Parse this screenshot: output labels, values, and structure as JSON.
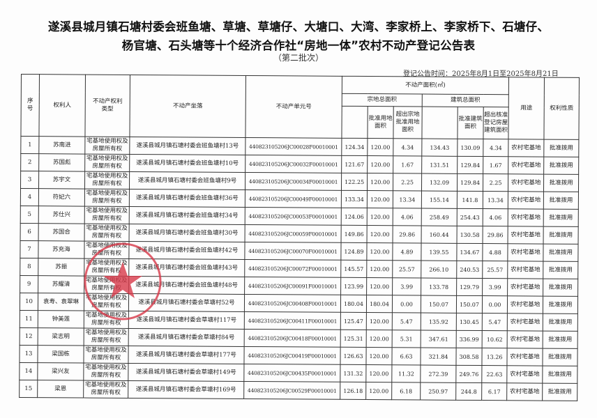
{
  "title_line1": "遂溪县城月镇石塘村委会班鱼塘、草塘、草塘仔、大塘口、大湾、李家桥上、李家桥下、石塘仔、",
  "title_line2": "杨官塘、石头塘等十个经济合作社“房地一体”农村不动产登记公告表",
  "batch": "（第二批次）",
  "publish_time": "登记公告时间：2025年8月1日至2025年8月21日",
  "headers": {
    "seq": "序号",
    "owner": "权利人",
    "right_type": "不动产权利类型",
    "location": "不动产坐落",
    "unit_no": "不动产单元号",
    "area": "不动产面积(㎡)",
    "land_total": "宗地总面积",
    "land_approved": "批准用地面积",
    "land_excess": "超出宗地批准用地面积",
    "building_total": "建筑总面积",
    "building_approved": "批准建筑面积",
    "building_excess": "超出核准登记房屋建筑面积",
    "usage": "用途",
    "nature": "权利性质"
  },
  "rows": [
    {
      "seq": "1",
      "owner": "苏南进",
      "type": "宅基地使用权及房屋所有权",
      "location": "遂溪县城月镇石塘村委会班鱼塘村13号",
      "unit": "440823105206JC00028F00010001",
      "land_total": "124.34",
      "land_approved": "120.00",
      "land_excess": "4.34",
      "bld_total": "134.43",
      "bld_approved": "130.09",
      "bld_excess": "4.34",
      "usage": "农村宅基地",
      "nature": "批准拨用"
    },
    {
      "seq": "2",
      "owner": "苏国彪",
      "type": "宅基地使用权及房屋所有权",
      "location": "遂溪县城月镇石塘村委会班鱼塘村10号",
      "unit": "440823105206JC00032F00010001",
      "land_total": "121.67",
      "land_approved": "120.00",
      "land_excess": "1.67",
      "bld_total": "131.51",
      "bld_approved": "129.84",
      "bld_excess": "1.67",
      "usage": "农村宅基地",
      "nature": "批准拨用"
    },
    {
      "seq": "3",
      "owner": "苏宇文",
      "type": "宅基地使用权及房屋所有权",
      "location": "遂溪县城月镇石塘村委会班鱼塘村9号",
      "unit": "440823105206JC00034F00010001",
      "land_total": "122.25",
      "land_approved": "120.00",
      "land_excess": "2.25",
      "bld_total": "132.09",
      "bld_approved": "129.84",
      "bld_excess": "2.25",
      "usage": "农村宅基地",
      "nature": "批准拨用"
    },
    {
      "seq": "4",
      "owner": "符妃六",
      "type": "宅基地使用权及房屋所有权",
      "location": "遂溪县城月镇石塘村委会班鱼塘村36号",
      "unit": "440823105206JC00049F00010001",
      "land_total": "133.34",
      "land_approved": "120.00",
      "land_excess": "13.34",
      "bld_total": "155.14",
      "bld_approved": "141.8",
      "bld_excess": "13.34",
      "usage": "农村宅基地",
      "nature": "批准拨用"
    },
    {
      "seq": "5",
      "owner": "苏仕兴",
      "type": "宅基地使用权及房屋所有权",
      "location": "遂溪县城月镇石塘村委会班鱼塘村34号",
      "unit": "440823105206JC00053F00010001",
      "land_total": "124.06",
      "land_approved": "120.00",
      "land_excess": "4.06",
      "bld_total": "258.49",
      "bld_approved": "254.43",
      "bld_excess": "4.06",
      "usage": "农村宅基地",
      "nature": "批准拨用"
    },
    {
      "seq": "6",
      "owner": "苏国合",
      "type": "宅基地使用权及房屋所有权",
      "location": "遂溪县城月镇石塘村委会班鱼塘村30号",
      "unit": "440823105206JC00059F00010001",
      "land_total": "149.86",
      "land_approved": "120.00",
      "land_excess": "29.86",
      "bld_total": "160.44",
      "bld_approved": "130.58",
      "bld_excess": "29.86",
      "usage": "农村宅基地",
      "nature": "批准拨用"
    },
    {
      "seq": "7",
      "owner": "苏充海",
      "type": "宅基地使用权及房屋所有权",
      "location": "遂溪县城月镇石塘村委会班鱼塘村42号",
      "unit": "440823105206JC00070F00010001",
      "land_total": "124.89",
      "land_approved": "120.00",
      "land_excess": "4.89",
      "bld_total": "139.55",
      "bld_approved": "134.67",
      "bld_excess": "4.88",
      "usage": "农村宅基地",
      "nature": "批准拨用"
    },
    {
      "seq": "8",
      "owner": "苏振",
      "type": "宅基地使用权及房屋所有权",
      "location": "遂溪县城月镇石塘村委会班鱼塘村43号",
      "unit": "440823105206JC00072F00010001",
      "land_total": "145.57",
      "land_approved": "120.00",
      "land_excess": "25.57",
      "bld_total": "266.10",
      "bld_approved": "240.53",
      "bld_excess": "25.57",
      "usage": "农村宅基地",
      "nature": "批准拨用"
    },
    {
      "seq": "9",
      "owner": "苏耀清",
      "type": "宅基地使用权及房屋所有权",
      "location": "遂溪县城月镇石塘村委会班鱼塘村48号",
      "unit": "440823105206JC00091F00010001",
      "land_total": "123.99",
      "land_approved": "120.00",
      "land_excess": "3.99",
      "bld_total": "133.78",
      "bld_approved": "129.79",
      "bld_excess": "3.99",
      "usage": "农村宅基地",
      "nature": "批准拨用"
    },
    {
      "seq": "10",
      "owner": "袁寿、袁翠琳",
      "type": "宅基地使用权及房屋所有权",
      "location": "遂溪县城月镇石塘村委会草塘村52号",
      "unit": "440823105206JC00408F00010001",
      "land_total": "180.04",
      "land_approved": "180.04",
      "land_excess": "0.00",
      "bld_total": "150.07",
      "bld_approved": "150.07",
      "bld_excess": "0.00",
      "usage": "农村宅基地",
      "nature": "批准拨用"
    },
    {
      "seq": "11",
      "owner": "钟美莲",
      "type": "宅基地使用权及房屋所有权",
      "location": "遂溪县城月镇石塘村委会草塘村117号",
      "unit": "440823105206JC00411F00010001",
      "land_total": "125.47",
      "land_approved": "120.00",
      "land_excess": "5.47",
      "bld_total": "135.92",
      "bld_approved": "130.45",
      "bld_excess": "5.47",
      "usage": "农村宅基地",
      "nature": "批准拨用"
    },
    {
      "seq": "12",
      "owner": "梁志明",
      "type": "宅基地使用权及房屋所有权",
      "location": "遂溪县城月镇石塘村委会草塘村84号",
      "unit": "440823105206JC00418F00010001",
      "land_total": "125.31",
      "land_approved": "120.00",
      "land_excess": "5.31",
      "bld_total": "347.61",
      "bld_approved": "336.99",
      "bld_excess": "10.62",
      "usage": "农村宅基地",
      "nature": "批准拨用"
    },
    {
      "seq": "13",
      "owner": "梁国栋",
      "type": "宅基地使用权及房屋所有权",
      "location": "遂溪县城月镇石塘村委会草塘村177号",
      "unit": "440823105206JC00419F00010001",
      "land_total": "126.63",
      "land_approved": "120.00",
      "land_excess": "6.63",
      "bld_total": "321.84",
      "bld_approved": "308.58",
      "bld_excess": "13.26",
      "usage": "农村宅基地",
      "nature": "批准拨用"
    },
    {
      "seq": "14",
      "owner": "梁兴友",
      "type": "宅基地使用权及房屋所有权",
      "location": "遂溪县城月镇石塘村委会草塘村149号",
      "unit": "440823105206JC00435F00010001",
      "land_total": "131.32",
      "land_approved": "120.00",
      "land_excess": "11.32",
      "bld_total": "272.39",
      "bld_approved": "249.76",
      "bld_excess": "22.63",
      "usage": "农村宅基地",
      "nature": "批准拨用"
    },
    {
      "seq": "15",
      "owner": "梁恩",
      "type": "宅基地使用权及房屋所有权",
      "location": "遂溪县城月镇石塘村委会草塘村169号",
      "unit": "440823105206JC00529F00010001",
      "land_total": "126.18",
      "land_approved": "120.00",
      "land_excess": "6.18",
      "bld_total": "250.97",
      "bld_approved": "244.8",
      "bld_excess": "6.17",
      "usage": "农村宅基地",
      "nature": "批准拨用"
    }
  ],
  "stamp": {
    "color": "#d83a4a",
    "icon": "official-seal-star"
  }
}
